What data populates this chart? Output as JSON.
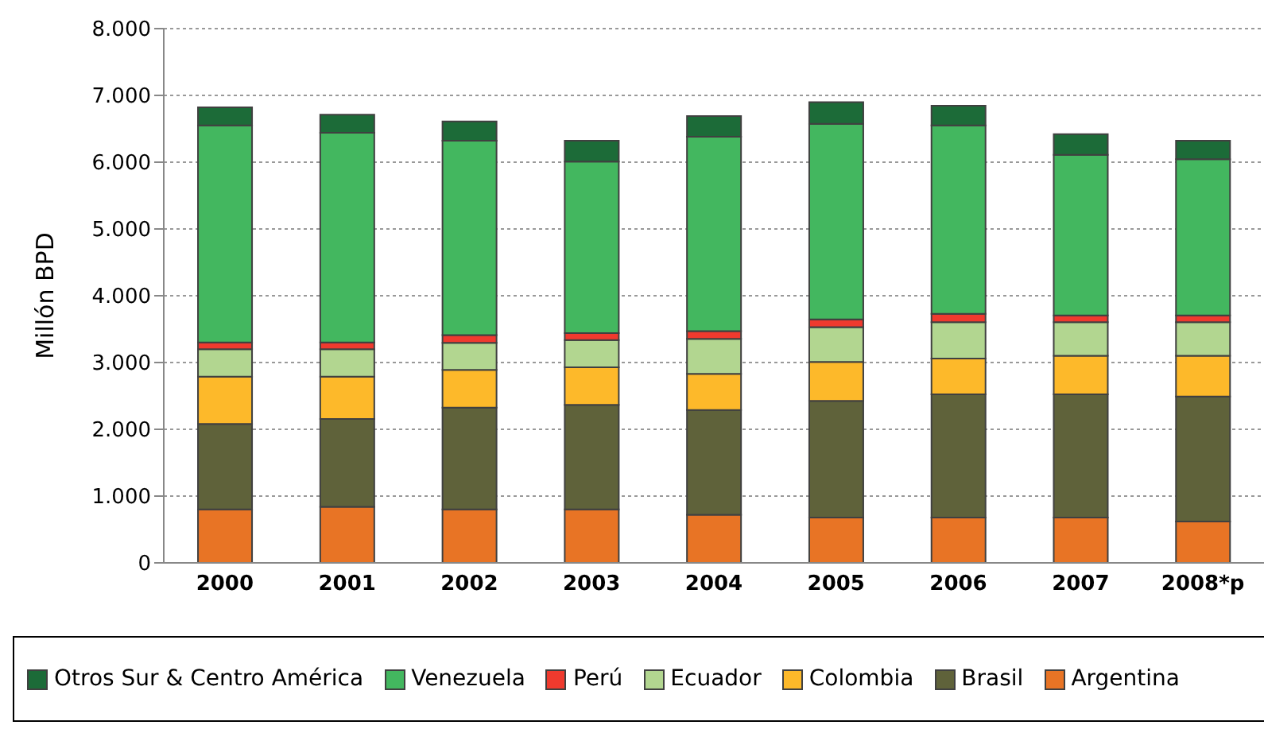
{
  "chart_data": {
    "type": "bar",
    "stacked": true,
    "ylabel": "Millón BPD",
    "categories": [
      "2000",
      "2001",
      "2002",
      "2003",
      "2004",
      "2005",
      "2006",
      "2007",
      "2008*p"
    ],
    "series": [
      {
        "name": "Argentina",
        "color": "#e87425",
        "values": [
          800,
          840,
          800,
          800,
          720,
          680,
          680,
          680,
          620
        ]
      },
      {
        "name": "Brasil",
        "color": "#5f623a",
        "values": [
          1280,
          1315,
          1525,
          1565,
          1570,
          1745,
          1845,
          1845,
          1870
        ]
      },
      {
        "name": "Colombia",
        "color": "#fdb92a",
        "values": [
          710,
          635,
          565,
          565,
          540,
          585,
          535,
          575,
          610
        ]
      },
      {
        "name": "Ecuador",
        "color": "#b2d690",
        "values": [
          410,
          410,
          405,
          405,
          525,
          520,
          545,
          505,
          505
        ]
      },
      {
        "name": "Perú",
        "color": "#ef3a2e",
        "values": [
          100,
          100,
          115,
          105,
          115,
          115,
          125,
          100,
          100
        ]
      },
      {
        "name": "Venezuela",
        "color": "#43b75f",
        "values": [
          3250,
          3140,
          2910,
          2570,
          2910,
          2930,
          2820,
          2405,
          2340
        ]
      },
      {
        "name": "Otros Sur & Centro América",
        "color": "#1c6b38",
        "values": [
          270,
          270,
          290,
          310,
          310,
          325,
          295,
          310,
          275
        ]
      }
    ],
    "ylim": [
      0,
      8000
    ],
    "yticks": [
      {
        "value": 0,
        "label": "0"
      },
      {
        "value": 1000,
        "label": "1.000"
      },
      {
        "value": 2000,
        "label": "2.000"
      },
      {
        "value": 3000,
        "label": "3.000"
      },
      {
        "value": 4000,
        "label": "4.000"
      },
      {
        "value": 5000,
        "label": "5.000"
      },
      {
        "value": 6000,
        "label": "6.000"
      },
      {
        "value": 7000,
        "label": "7.000"
      },
      {
        "value": 8000,
        "label": "8.000"
      }
    ],
    "grid": "y",
    "legend": "bottom"
  }
}
